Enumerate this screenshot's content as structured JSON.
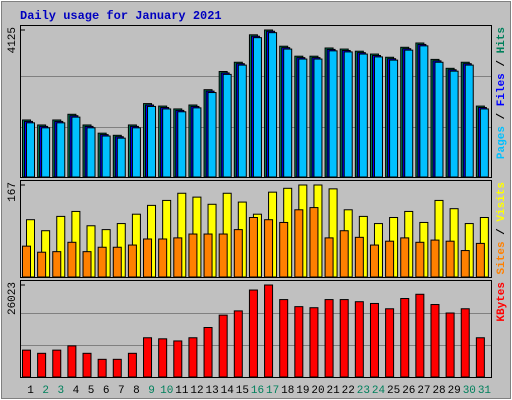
{
  "chart_data": [
    {
      "type": "bar",
      "title": "Daily usage for January 2021",
      "legend_separator": " / ",
      "ylim": [
        0,
        4125
      ],
      "yticks": [
        4125
      ],
      "series": [
        {
          "name": "Hits",
          "color": "#00805c",
          "values": [
            1600,
            1460,
            1600,
            1760,
            1460,
            1230,
            1170,
            1460,
            2060,
            1990,
            1910,
            2020,
            2450,
            2960,
            3220,
            3990,
            4125,
            3670,
            3390,
            3390,
            3620,
            3590,
            3530,
            3450,
            3360,
            3640,
            3760,
            3300,
            3050,
            3220,
            1990
          ]
        },
        {
          "name": "Files",
          "color": "#0000ff",
          "values": [
            1560,
            1420,
            1560,
            1720,
            1420,
            1190,
            1130,
            1420,
            2020,
            1950,
            1870,
            1980,
            2410,
            2920,
            3180,
            3950,
            4090,
            3630,
            3350,
            3350,
            3580,
            3550,
            3490,
            3410,
            3320,
            3600,
            3720,
            3260,
            3010,
            3180,
            1950
          ]
        },
        {
          "name": "Pages",
          "color": "#00c0ff",
          "values": [
            1520,
            1380,
            1520,
            1680,
            1380,
            1150,
            1090,
            1380,
            1980,
            1910,
            1830,
            1940,
            2370,
            2880,
            3140,
            3910,
            4050,
            3590,
            3310,
            3310,
            3540,
            3510,
            3450,
            3370,
            3280,
            3560,
            3680,
            3220,
            2970,
            3140,
            1910
          ]
        }
      ]
    },
    {
      "type": "bar",
      "ylim": [
        0,
        167
      ],
      "yticks": [
        167
      ],
      "series": [
        {
          "name": "Visits",
          "color": "#ffff00",
          "values": [
            104,
            84,
            110,
            119,
            93,
            86,
            97,
            114,
            130,
            139,
            152,
            145,
            132,
            152,
            136,
            114,
            154,
            161,
            167,
            167,
            160,
            122,
            110,
            97,
            108,
            119,
            99,
            139,
            124,
            97,
            108
          ]
        },
        {
          "name": "Sites",
          "color": "#ff8000",
          "values": [
            56,
            45,
            46,
            63,
            46,
            54,
            54,
            58,
            69,
            69,
            71,
            78,
            78,
            78,
            86,
            108,
            104,
            99,
            122,
            126,
            71,
            84,
            72,
            58,
            65,
            71,
            63,
            67,
            65,
            48,
            61
          ]
        }
      ]
    },
    {
      "type": "bar",
      "ylim": [
        0,
        26023
      ],
      "yticks": [
        26023
      ],
      "categories": [
        "1",
        "2",
        "3",
        "4",
        "5",
        "6",
        "7",
        "8",
        "9",
        "10",
        "11",
        "12",
        "13",
        "14",
        "15",
        "16",
        "17",
        "18",
        "19",
        "20",
        "21",
        "22",
        "23",
        "24",
        "25",
        "26",
        "27",
        "28",
        "29",
        "30",
        "31"
      ],
      "category_colors": [
        "#000000",
        "#00805c",
        "#00805c",
        "#000000",
        "#000000",
        "#000000",
        "#000000",
        "#000000",
        "#00805c",
        "#00805c",
        "#000000",
        "#000000",
        "#000000",
        "#000000",
        "#000000",
        "#00805c",
        "#00805c",
        "#000000",
        "#000000",
        "#000000",
        "#000000",
        "#000000",
        "#00805c",
        "#00805c",
        "#000000",
        "#000000",
        "#000000",
        "#000000",
        "#000000",
        "#00805c",
        "#00805c"
      ],
      "series": [
        {
          "name": "KBytes",
          "color": "#ff0000",
          "values": [
            7600,
            6700,
            7600,
            8800,
            6700,
            5000,
            5000,
            6700,
            11100,
            10800,
            10200,
            11100,
            14000,
            17500,
            18700,
            24600,
            26023,
            21900,
            19900,
            19600,
            21900,
            21900,
            21300,
            20800,
            19300,
            22200,
            23400,
            20500,
            18100,
            19300,
            11100
          ]
        }
      ]
    }
  ]
}
